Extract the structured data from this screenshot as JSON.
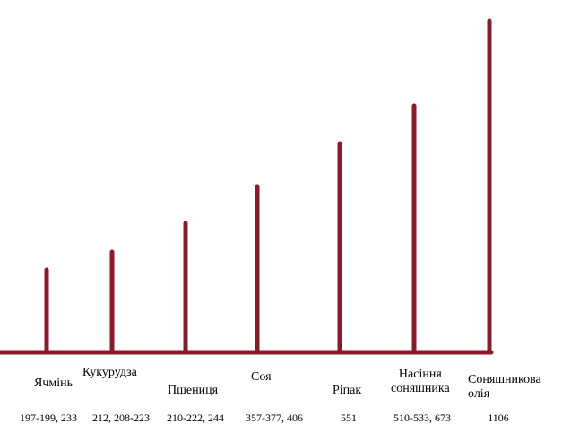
{
  "items": [
    {
      "name": [
        "Ячмінь"
      ],
      "prices": "197-199, 233"
    },
    {
      "name": [
        "Кукурудза"
      ],
      "prices": "212, 208-223"
    },
    {
      "name": [
        "Пшениця"
      ],
      "prices": "210-222, 244"
    },
    {
      "name": [
        "Соя"
      ],
      "prices": "357-377, 406"
    },
    {
      "name": [
        "Ріпак"
      ],
      "prices": "551"
    },
    {
      "name": [
        "Насіння",
        "соняшника"
      ],
      "prices": "510-533, 673"
    },
    {
      "name": [
        "Соняшникова",
        "олія"
      ],
      "prices": "1106"
    }
  ]
}
